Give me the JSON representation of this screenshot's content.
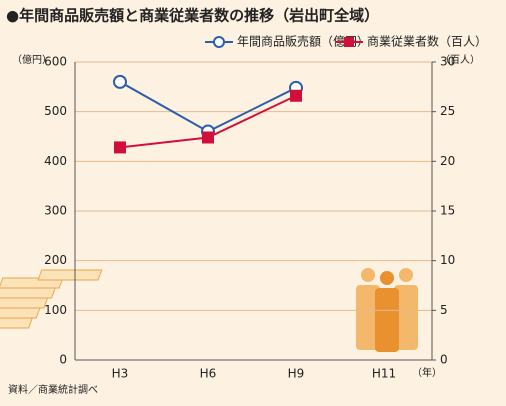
{
  "chart_data": {
    "type": "line",
    "title": "●年間商品販売額と商業従業者数の推移（岩出町全域）",
    "y_label": "（億円）",
    "y2_label": "（百人）",
    "x_label": "（年）",
    "source": "資料／商業統計調べ",
    "categories": [
      "H3",
      "H6",
      "H9",
      "H11"
    ],
    "series": [
      {
        "name": "年間商品販売額（億円）",
        "color": "#2b5fa8",
        "marker": "circle",
        "values": [
          560,
          460,
          548,
          null
        ]
      },
      {
        "name": "商業従業者数（百人）",
        "color": "#d0103a",
        "marker": "square",
        "axis": "y2",
        "values": [
          21.4,
          22.4,
          26.6,
          null
        ]
      }
    ],
    "ylim": [
      0,
      600
    ],
    "yticks": [
      0,
      100,
      200,
      300,
      400,
      500,
      600
    ],
    "y2lim": [
      0,
      30
    ],
    "y2ticks": [
      0,
      5,
      10,
      15,
      20,
      25,
      30
    ],
    "grid": true
  }
}
